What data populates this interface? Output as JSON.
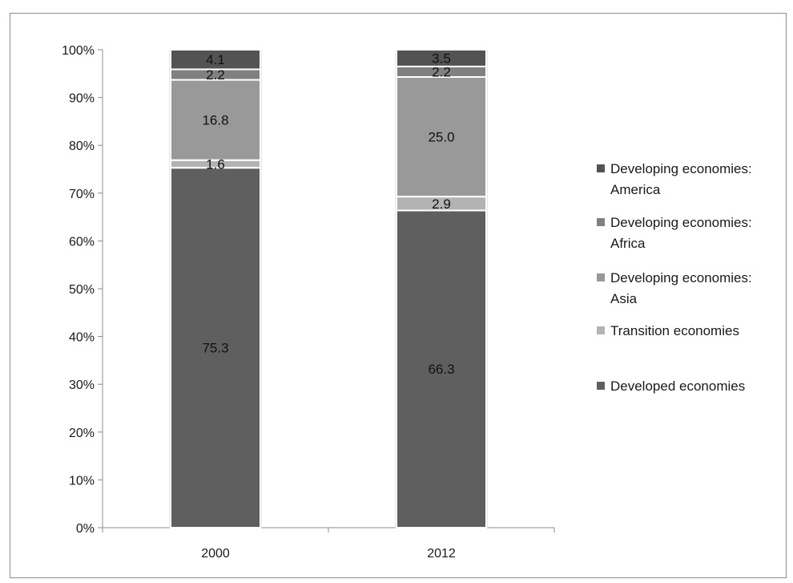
{
  "chart_data": {
    "type": "bar",
    "stacked": true,
    "percent_stacked": true,
    "categories": [
      "2000",
      "2012"
    ],
    "series": [
      {
        "name": "Developed economies",
        "values": [
          75.3,
          66.3
        ],
        "color": "#5f5f5f"
      },
      {
        "name": "Transition economies",
        "values": [
          1.6,
          2.9
        ],
        "color": "#b3b3b3"
      },
      {
        "name": "Developing economies: Asia",
        "values": [
          16.8,
          25.0
        ],
        "color": "#999999"
      },
      {
        "name": "Developing economies: Africa",
        "values": [
          2.2,
          2.2
        ],
        "color": "#808080"
      },
      {
        "name": "Developing economies: America",
        "values": [
          4.1,
          3.5
        ],
        "color": "#535353"
      }
    ],
    "data_labels": [
      [
        "75.3",
        "66.3"
      ],
      [
        "1.6",
        "2.9"
      ],
      [
        "16.8",
        "25.0"
      ],
      [
        "2.2",
        "2.2"
      ],
      [
        "4.1",
        "3.5"
      ]
    ],
    "yticks": [
      "0%",
      "10%",
      "20%",
      "30%",
      "40%",
      "50%",
      "60%",
      "70%",
      "80%",
      "90%",
      "100%"
    ],
    "ylim": [
      0,
      100
    ],
    "title": "",
    "xlabel": "",
    "ylabel": "",
    "grid": false,
    "legend_position": "right",
    "legend": [
      {
        "lines": [
          "Developing economies:",
          "America"
        ],
        "color": "#535353"
      },
      {
        "lines": [
          "Developing economies:",
          "Africa"
        ],
        "color": "#808080"
      },
      {
        "lines": [
          "Developing economies:",
          "Asia"
        ],
        "color": "#999999"
      },
      {
        "lines": [
          "Transition economies"
        ],
        "color": "#b3b3b3"
      },
      {
        "lines": [
          "Developed economies"
        ],
        "color": "#5f5f5f"
      }
    ]
  }
}
